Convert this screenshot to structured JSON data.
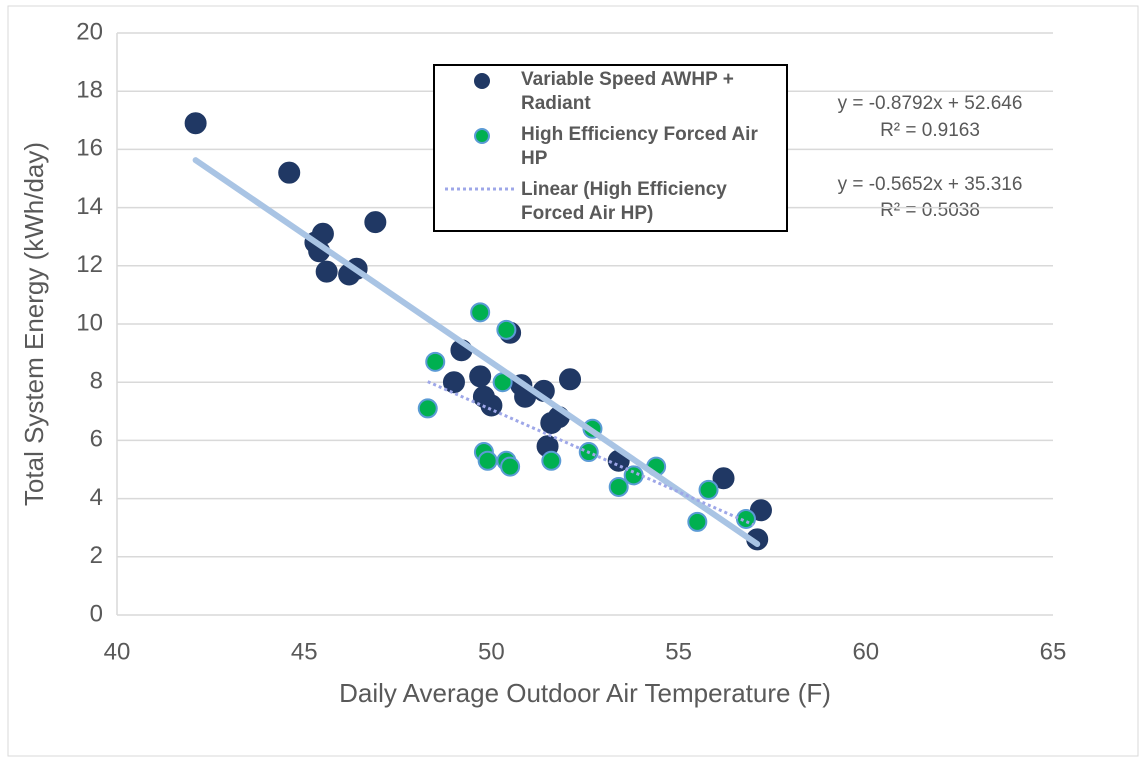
{
  "chart_data": {
    "type": "scatter",
    "xlabel": "Daily Average Outdoor Air Temperature (F)",
    "ylabel": "Total System Energy (kWh/day)",
    "xlim": [
      40,
      65
    ],
    "xticks": [
      40,
      45,
      50,
      55,
      60,
      65
    ],
    "ylim": [
      0,
      20
    ],
    "yticks": [
      0,
      2,
      4,
      6,
      8,
      10,
      12,
      14,
      16,
      18,
      20
    ],
    "grid": true,
    "legend": "top",
    "series": [
      {
        "name": "Variable Speed AWHP + Radiant",
        "color": "#203864",
        "edgecolor": "#203864",
        "x": [
          42.1,
          44.6,
          45.3,
          45.5,
          45.4,
          45.6,
          46.2,
          46.4,
          46.9,
          49.2,
          49.0,
          49.7,
          49.8,
          50.0,
          50.5,
          50.8,
          50.9,
          51.4,
          51.5,
          51.6,
          51.8,
          52.1,
          53.4,
          56.2,
          57.2,
          57.1
        ],
        "values": [
          16.9,
          15.2,
          12.8,
          13.1,
          12.5,
          11.8,
          11.7,
          11.9,
          13.5,
          9.1,
          8.0,
          8.2,
          7.5,
          7.2,
          9.7,
          7.9,
          7.5,
          7.7,
          5.8,
          6.6,
          6.8,
          8.1,
          5.3,
          4.7,
          3.6,
          2.6
        ]
      },
      {
        "name": "High Efficiency Forced Air HP",
        "color": "#00b050",
        "edgecolor": "#5b9bd5",
        "x": [
          48.3,
          48.5,
          49.7,
          49.8,
          49.9,
          50.4,
          50.3,
          50.4,
          50.5,
          51.6,
          52.6,
          52.7,
          53.4,
          53.8,
          54.4,
          55.5,
          55.8,
          56.8
        ],
        "values": [
          7.1,
          8.7,
          10.4,
          5.6,
          5.3,
          9.8,
          8.0,
          5.3,
          5.1,
          5.3,
          5.6,
          6.4,
          4.4,
          4.8,
          5.1,
          3.2,
          4.3,
          3.3
        ]
      }
    ],
    "trendlines": [
      {
        "color": "#a9c4e4",
        "style": "solid",
        "x": [
          42.1,
          57.1
        ],
        "values": [
          15.63,
          2.44
        ],
        "equation": "y = -0.8792x + 52.646",
        "r_squared": "R² = 0.9163"
      },
      {
        "name": "Linear (High Efficiency Forced Air HP)",
        "color": "#9ea7e8",
        "style": "dotted",
        "x": [
          48.3,
          57.0
        ],
        "values": [
          8.02,
          3.1
        ],
        "equation": "y = -0.5652x + 35.316",
        "r_squared": "R² = 0.5038"
      }
    ]
  }
}
